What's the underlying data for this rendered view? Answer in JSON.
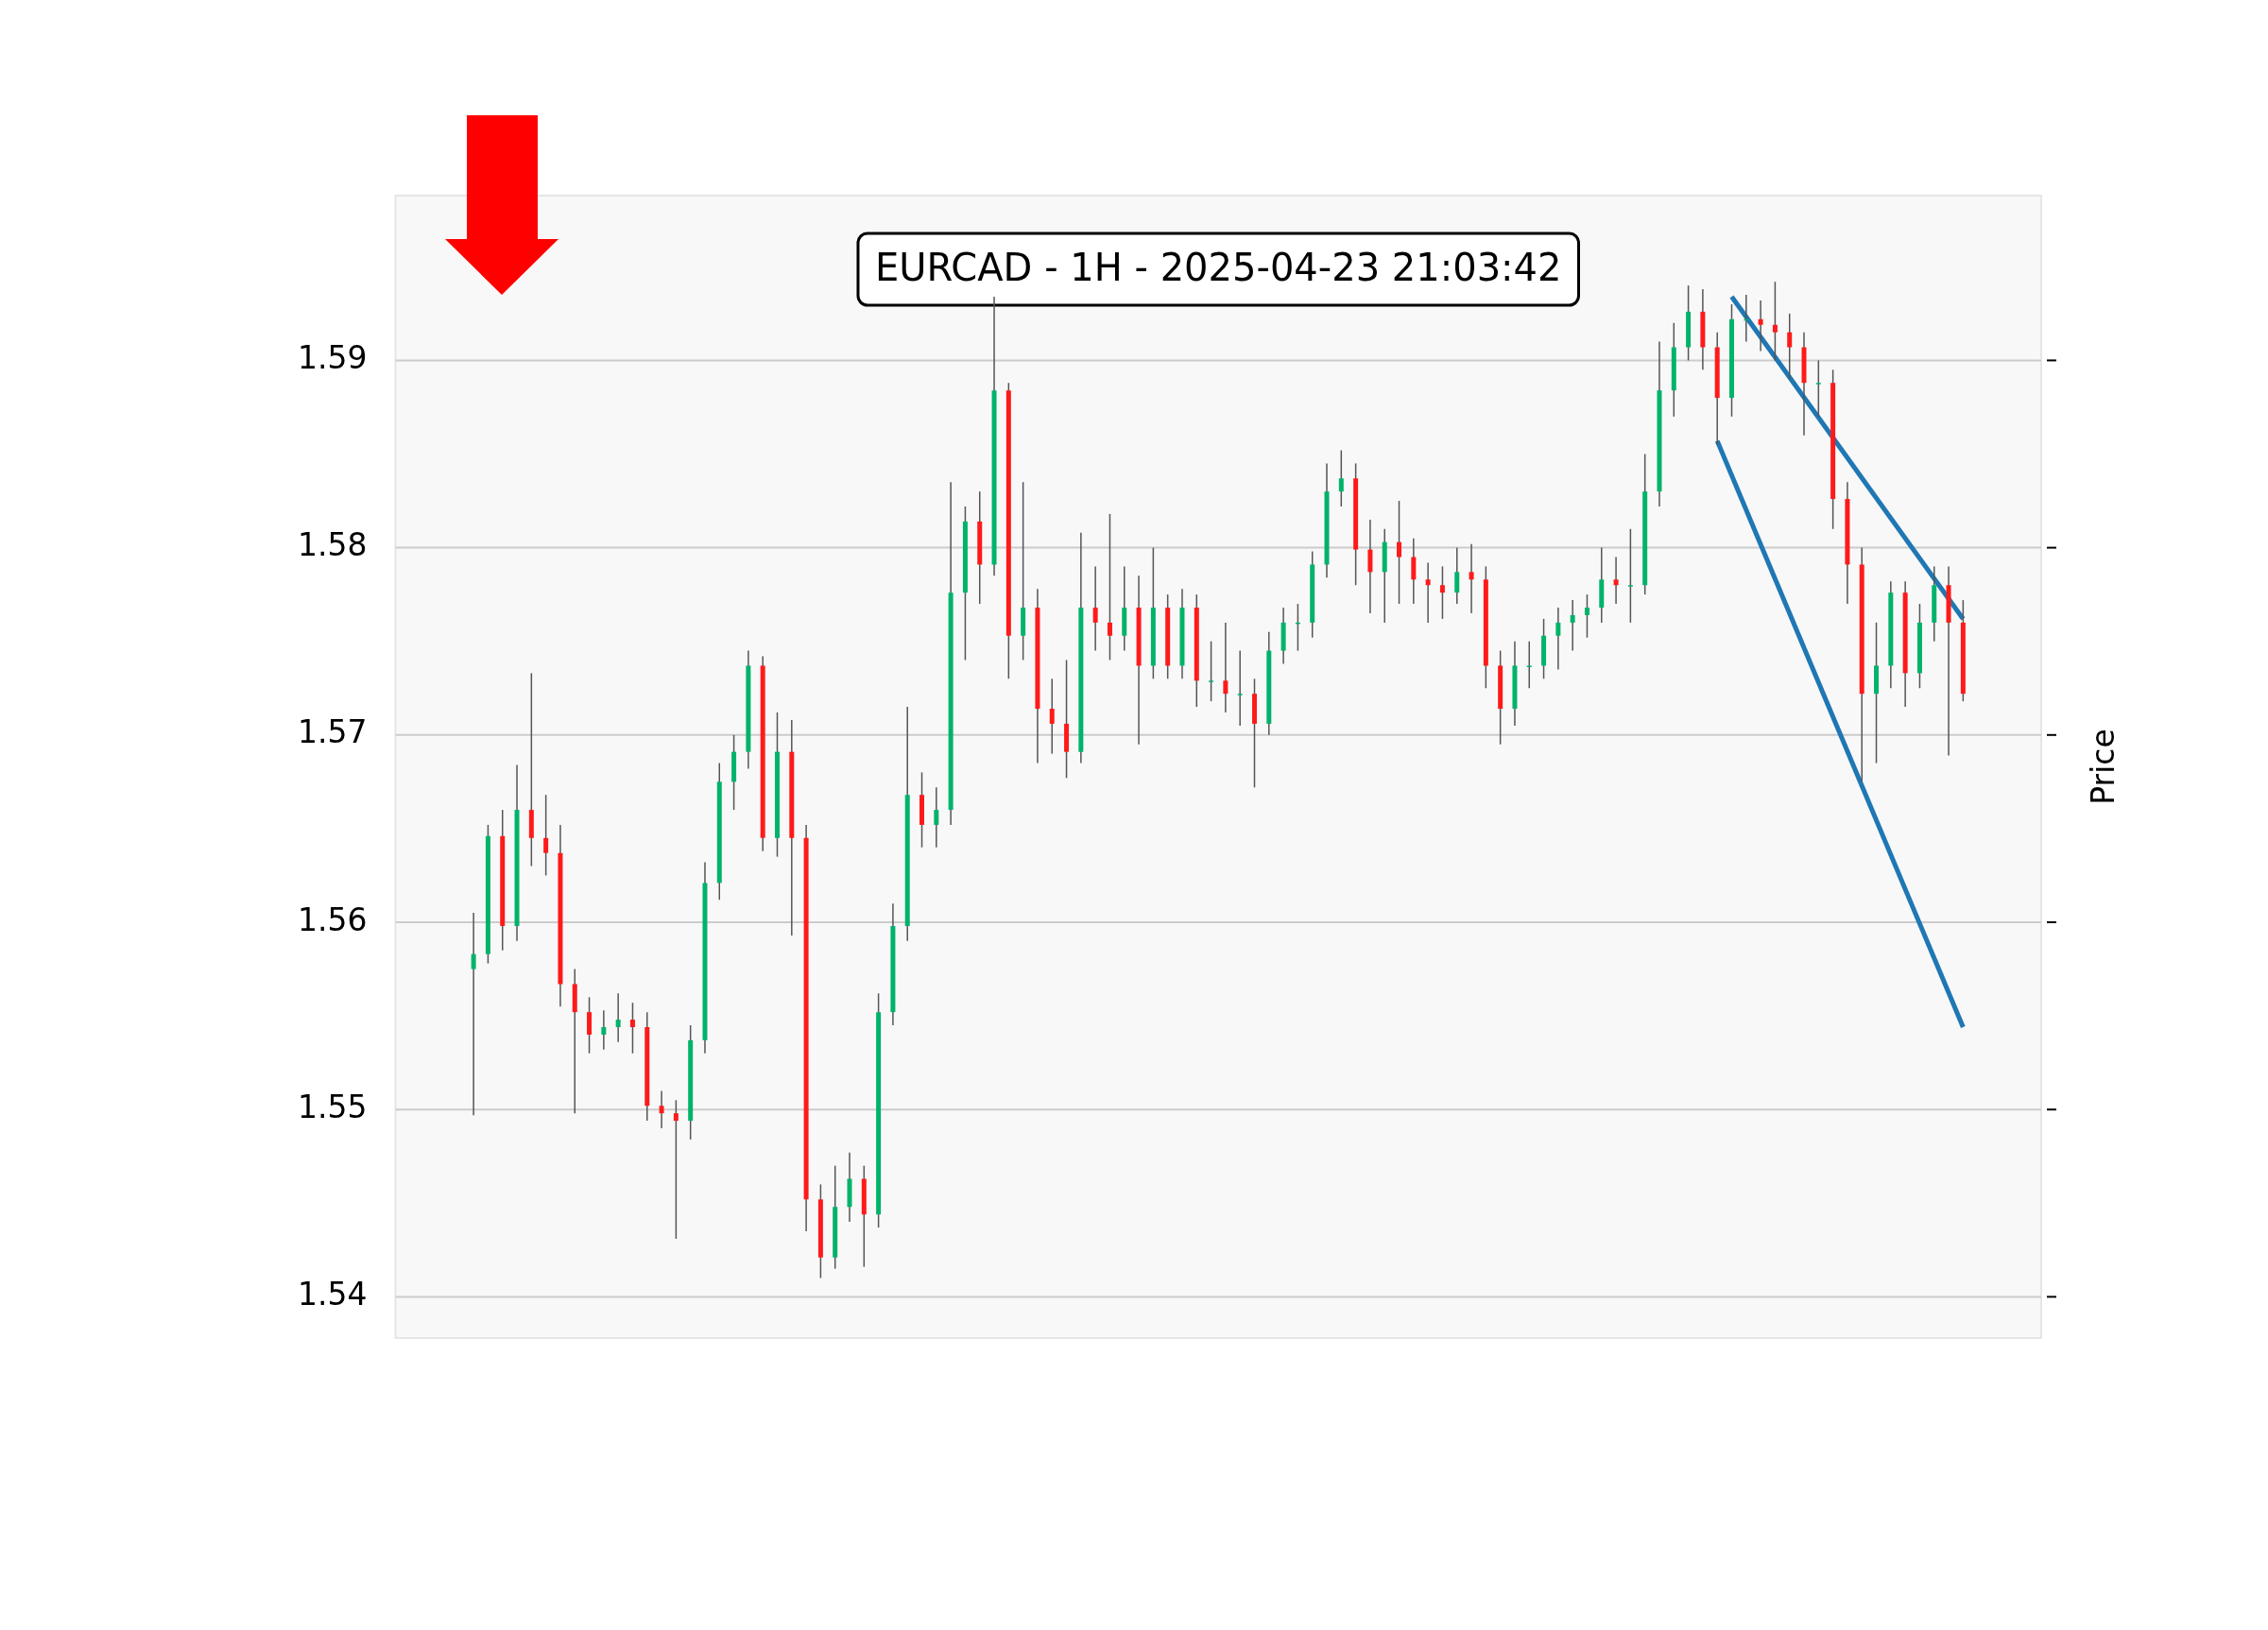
{
  "chart_data": {
    "type": "candlestick",
    "title": "EURCAD - 1H - 2025-04-23 21:03:42",
    "ylabel": "Price",
    "categories": [
      null,
      null,
      null,
      null,
      null,
      null,
      null,
      null,
      null,
      null,
      null,
      null,
      null,
      null,
      null,
      null,
      null,
      null,
      null,
      null,
      null,
      null,
      null,
      null,
      null,
      null,
      null,
      null,
      null,
      null,
      null,
      null,
      null,
      null,
      null,
      null,
      null,
      null,
      null,
      null,
      null,
      null,
      null,
      null,
      null,
      null,
      null,
      null,
      null,
      null,
      null,
      null,
      null,
      null,
      null,
      null,
      null,
      null,
      null,
      null,
      null,
      null,
      null,
      null,
      null,
      null,
      null,
      null,
      null,
      null,
      null,
      null,
      null,
      null,
      null,
      null,
      null,
      null,
      null,
      null,
      null,
      null,
      null,
      null,
      null,
      null,
      null,
      null,
      null,
      null,
      null,
      null,
      null,
      null,
      null,
      null,
      null,
      null,
      null,
      null,
      null,
      null,
      null,
      null
    ],
    "ohlc": [
      [
        1.5575,
        1.5605,
        1.5497,
        1.5583
      ],
      [
        1.5583,
        1.5652,
        1.5578,
        1.5646
      ],
      [
        1.5646,
        1.566,
        1.5585,
        1.5598
      ],
      [
        1.5598,
        1.5684,
        1.559,
        1.566
      ],
      [
        1.566,
        1.5733,
        1.563,
        1.5645
      ],
      [
        1.5645,
        1.5668,
        1.5625,
        1.5637
      ],
      [
        1.5637,
        1.5652,
        1.5555,
        1.5567
      ],
      [
        1.5567,
        1.5575,
        1.5498,
        1.5552
      ],
      [
        1.5552,
        1.556,
        1.553,
        1.554
      ],
      [
        1.554,
        1.5553,
        1.5532,
        1.5544
      ],
      [
        1.5544,
        1.5562,
        1.5536,
        1.5548
      ],
      [
        1.5548,
        1.5557,
        1.553,
        1.5544
      ],
      [
        1.5544,
        1.5552,
        1.5494,
        1.5502
      ],
      [
        1.5502,
        1.551,
        1.549,
        1.5498
      ],
      [
        1.5498,
        1.5505,
        1.5431,
        1.5494
      ],
      [
        1.5494,
        1.5545,
        1.5484,
        1.5537
      ],
      [
        1.5537,
        1.5632,
        1.553,
        1.5621
      ],
      [
        1.5621,
        1.5685,
        1.5612,
        1.5675
      ],
      [
        1.5675,
        1.57,
        1.566,
        1.5691
      ],
      [
        1.5691,
        1.5745,
        1.5682,
        1.5737
      ],
      [
        1.5737,
        1.5742,
        1.5638,
        1.5645
      ],
      [
        1.5645,
        1.5712,
        1.5635,
        1.5691
      ],
      [
        1.5691,
        1.5708,
        1.5593,
        1.5645
      ],
      [
        1.5645,
        1.5652,
        1.5435,
        1.5452
      ],
      [
        1.5452,
        1.546,
        1.541,
        1.5421
      ],
      [
        1.5421,
        1.547,
        1.5415,
        1.5448
      ],
      [
        1.5448,
        1.5477,
        1.544,
        1.5463
      ],
      [
        1.5463,
        1.547,
        1.5416,
        1.5444
      ],
      [
        1.5444,
        1.5562,
        1.5437,
        1.5552
      ],
      [
        1.5552,
        1.561,
        1.5545,
        1.5598
      ],
      [
        1.5598,
        1.5715,
        1.559,
        1.5668
      ],
      [
        1.5668,
        1.568,
        1.564,
        1.5652
      ],
      [
        1.5652,
        1.5672,
        1.564,
        1.566
      ],
      [
        1.566,
        1.5835,
        1.5652,
        1.5776
      ],
      [
        1.5776,
        1.5822,
        1.574,
        1.5814
      ],
      [
        1.5814,
        1.583,
        1.577,
        1.5791
      ],
      [
        1.5791,
        1.5934,
        1.5785,
        1.5884
      ],
      [
        1.5884,
        1.5888,
        1.573,
        1.5753
      ],
      [
        1.5753,
        1.5835,
        1.574,
        1.5768
      ],
      [
        1.5768,
        1.5778,
        1.5685,
        1.5714
      ],
      [
        1.5714,
        1.573,
        1.569,
        1.5706
      ],
      [
        1.5706,
        1.574,
        1.5677,
        1.5691
      ],
      [
        1.5691,
        1.5808,
        1.5685,
        1.5768
      ],
      [
        1.5768,
        1.579,
        1.5745,
        1.576
      ],
      [
        1.576,
        1.5818,
        1.574,
        1.5753
      ],
      [
        1.5753,
        1.579,
        1.5745,
        1.5768
      ],
      [
        1.5768,
        1.5785,
        1.5695,
        1.5737
      ],
      [
        1.5737,
        1.58,
        1.573,
        1.5768
      ],
      [
        1.5768,
        1.5775,
        1.573,
        1.5737
      ],
      [
        1.5737,
        1.5778,
        1.573,
        1.5768
      ],
      [
        1.5768,
        1.5775,
        1.5715,
        1.5729
      ],
      [
        1.5729,
        1.575,
        1.5718,
        1.5729
      ],
      [
        1.5729,
        1.576,
        1.5712,
        1.5722
      ],
      [
        1.5722,
        1.5745,
        1.5705,
        1.5722
      ],
      [
        1.5722,
        1.573,
        1.5672,
        1.5706
      ],
      [
        1.5706,
        1.5755,
        1.57,
        1.5745
      ],
      [
        1.5745,
        1.5768,
        1.5738,
        1.576
      ],
      [
        1.576,
        1.577,
        1.5745,
        1.576
      ],
      [
        1.576,
        1.5798,
        1.5752,
        1.5791
      ],
      [
        1.5791,
        1.5845,
        1.5784,
        1.583
      ],
      [
        1.583,
        1.5852,
        1.5822,
        1.5837
      ],
      [
        1.5837,
        1.5845,
        1.578,
        1.5799
      ],
      [
        1.5799,
        1.5815,
        1.5765,
        1.5787
      ],
      [
        1.5787,
        1.581,
        1.576,
        1.5803
      ],
      [
        1.5803,
        1.5825,
        1.577,
        1.5795
      ],
      [
        1.5795,
        1.5805,
        1.577,
        1.5783
      ],
      [
        1.5783,
        1.5792,
        1.576,
        1.578
      ],
      [
        1.578,
        1.579,
        1.5762,
        1.5776
      ],
      [
        1.5776,
        1.58,
        1.577,
        1.5787
      ],
      [
        1.5787,
        1.5802,
        1.5765,
        1.5783
      ],
      [
        1.5783,
        1.579,
        1.5725,
        1.5737
      ],
      [
        1.5737,
        1.5745,
        1.5695,
        1.5714
      ],
      [
        1.5714,
        1.575,
        1.5705,
        1.5737
      ],
      [
        1.5737,
        1.575,
        1.5725,
        1.5737
      ],
      [
        1.5737,
        1.5762,
        1.573,
        1.5753
      ],
      [
        1.5753,
        1.5768,
        1.5735,
        1.576
      ],
      [
        1.576,
        1.5772,
        1.5745,
        1.5764
      ],
      [
        1.5764,
        1.5775,
        1.5752,
        1.5768
      ],
      [
        1.5768,
        1.58,
        1.576,
        1.5783
      ],
      [
        1.5783,
        1.5795,
        1.577,
        1.578
      ],
      [
        1.578,
        1.581,
        1.576,
        1.578
      ],
      [
        1.578,
        1.585,
        1.5775,
        1.583
      ],
      [
        1.583,
        1.591,
        1.5822,
        1.5884
      ],
      [
        1.5884,
        1.592,
        1.587,
        1.5907
      ],
      [
        1.5907,
        1.594,
        1.59,
        1.5926
      ],
      [
        1.5926,
        1.5938,
        1.5895,
        1.5907
      ],
      [
        1.5907,
        1.5915,
        1.5855,
        1.588
      ],
      [
        1.588,
        1.593,
        1.587,
        1.5922
      ],
      [
        1.5922,
        1.5935,
        1.591,
        1.5922
      ],
      [
        1.5922,
        1.5932,
        1.5905,
        1.5919
      ],
      [
        1.5919,
        1.5942,
        1.59,
        1.5915
      ],
      [
        1.5915,
        1.5925,
        1.589,
        1.5907
      ],
      [
        1.5907,
        1.5915,
        1.586,
        1.5888
      ],
      [
        1.5888,
        1.59,
        1.587,
        1.5888
      ],
      [
        1.5888,
        1.5895,
        1.581,
        1.5826
      ],
      [
        1.5826,
        1.5835,
        1.577,
        1.5791
      ],
      [
        1.5791,
        1.58,
        1.5675,
        1.5722
      ],
      [
        1.5722,
        1.576,
        1.5685,
        1.5737
      ],
      [
        1.5737,
        1.5782,
        1.5725,
        1.5776
      ],
      [
        1.5776,
        1.5782,
        1.5715,
        1.5733
      ],
      [
        1.5733,
        1.577,
        1.5725,
        1.576
      ],
      [
        1.576,
        1.579,
        1.575,
        1.578
      ],
      [
        1.578,
        1.579,
        1.5689,
        1.576
      ],
      [
        1.576,
        1.5772,
        1.5718,
        1.5722
      ]
    ],
    "series": [
      {
        "type": "line",
        "color": "#1f77b4",
        "values": [
          null,
          null,
          null,
          null,
          null,
          null,
          null,
          null,
          null,
          null,
          null,
          null,
          null,
          null,
          null,
          null,
          null,
          null,
          null,
          null,
          null,
          null,
          null,
          null,
          null,
          null,
          null,
          null,
          null,
          null,
          null,
          null,
          null,
          null,
          null,
          null,
          null,
          null,
          null,
          null,
          null,
          null,
          null,
          null,
          null,
          null,
          null,
          null,
          null,
          null,
          null,
          null,
          null,
          null,
          null,
          null,
          null,
          null,
          null,
          null,
          null,
          null,
          null,
          null,
          null,
          null,
          null,
          null,
          null,
          null,
          null,
          null,
          null,
          null,
          null,
          null,
          null,
          null,
          null,
          null,
          null,
          null,
          null,
          null,
          null,
          null,
          null,
          1.5934,
          null,
          null,
          null,
          null,
          null,
          null,
          null,
          null,
          null,
          null,
          null,
          null,
          null,
          null,
          null,
          1.5762
        ]
      },
      {
        "type": "line",
        "color": "#1f77b4",
        "values": [
          null,
          null,
          null,
          null,
          null,
          null,
          null,
          null,
          null,
          null,
          null,
          null,
          null,
          null,
          null,
          null,
          null,
          null,
          null,
          null,
          null,
          null,
          null,
          null,
          null,
          null,
          null,
          null,
          null,
          null,
          null,
          null,
          null,
          null,
          null,
          null,
          null,
          null,
          null,
          null,
          null,
          null,
          null,
          null,
          null,
          null,
          null,
          null,
          null,
          null,
          null,
          null,
          null,
          null,
          null,
          null,
          null,
          null,
          null,
          null,
          null,
          null,
          null,
          null,
          null,
          null,
          null,
          null,
          null,
          null,
          null,
          null,
          null,
          null,
          null,
          null,
          null,
          null,
          null,
          null,
          null,
          null,
          null,
          null,
          null,
          null,
          1.5857,
          null,
          null,
          null,
          null,
          null,
          null,
          null,
          null,
          null,
          null,
          null,
          null,
          null,
          null,
          null,
          null,
          1.5544
        ]
      }
    ],
    "ylim": [
      1.5378,
      1.5988
    ],
    "yticks": [
      1.54,
      1.55,
      1.56,
      1.57,
      1.58,
      1.59
    ],
    "grid": "y",
    "legend": false,
    "tick_labels": "y"
  }
}
